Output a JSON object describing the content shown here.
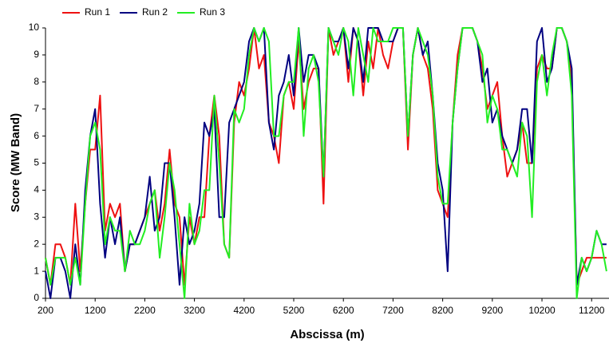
{
  "chart_data": {
    "type": "line",
    "xlabel": "Abscissa (m)",
    "ylabel": "Score (MW Band)",
    "x": [
      200,
      300,
      400,
      500,
      600,
      700,
      800,
      900,
      1000,
      1100,
      1200,
      1300,
      1400,
      1500,
      1600,
      1700,
      1800,
      1900,
      2000,
      2100,
      2200,
      2300,
      2400,
      2500,
      2600,
      2700,
      2800,
      2900,
      3000,
      3100,
      3200,
      3300,
      3400,
      3500,
      3600,
      3700,
      3800,
      3900,
      4000,
      4100,
      4200,
      4300,
      4400,
      4500,
      4600,
      4700,
      4800,
      4900,
      5000,
      5100,
      5200,
      5300,
      5400,
      5500,
      5600,
      5700,
      5800,
      5900,
      6000,
      6100,
      6200,
      6300,
      6400,
      6500,
      6600,
      6700,
      6800,
      6900,
      7000,
      7100,
      7200,
      7300,
      7400,
      7500,
      7600,
      7700,
      7800,
      7900,
      8000,
      8100,
      8200,
      8300,
      8400,
      8500,
      8600,
      8700,
      8800,
      8900,
      9000,
      9100,
      9200,
      9300,
      9400,
      9500,
      9600,
      9700,
      9800,
      9900,
      10000,
      10100,
      10200,
      10300,
      10400,
      10500,
      10600,
      10700,
      10800,
      10900,
      11000,
      11100,
      11200,
      11300,
      11400,
      11500
    ],
    "series": [
      {
        "name": "Run 1",
        "color": "#ee1111",
        "values": [
          1.5,
          0.5,
          2,
          2,
          1.5,
          0.5,
          3.5,
          1,
          3.5,
          5.5,
          5.5,
          7.5,
          2.5,
          3.5,
          3,
          3.5,
          1,
          2,
          2,
          2.5,
          3,
          3.5,
          4,
          2.5,
          3.5,
          5.5,
          3.5,
          3,
          0.5,
          3,
          2,
          3,
          3,
          6,
          7.5,
          6,
          2,
          1.5,
          6.5,
          8,
          7.5,
          8.5,
          10,
          8.5,
          9,
          6.5,
          6,
          5,
          7.5,
          8,
          7,
          9.5,
          7,
          8,
          8.5,
          8.5,
          3.5,
          10,
          9,
          9.5,
          10,
          8,
          10,
          9.5,
          7.5,
          9.5,
          8.5,
          10,
          9,
          8.5,
          9.5,
          10,
          10,
          5.5,
          9,
          10,
          9,
          8.5,
          7,
          4,
          3.5,
          3,
          6.5,
          9,
          10,
          10,
          10,
          9.5,
          8.5,
          7,
          7.5,
          8,
          6,
          4.5,
          5,
          5.5,
          6.5,
          5,
          5,
          8.5,
          9,
          8.5,
          8.5,
          10,
          10,
          9.5,
          8,
          0.5,
          1,
          1.5,
          1.5,
          1.5,
          1.5,
          1.5
        ]
      },
      {
        "name": "Run 2",
        "color": "#000080",
        "values": [
          1,
          0,
          1.5,
          1.5,
          1,
          0,
          2,
          0.5,
          4,
          6,
          7,
          3.5,
          1.5,
          3,
          2,
          3,
          1,
          2,
          2,
          2.5,
          3,
          4.5,
          2.5,
          3,
          5,
          5,
          3,
          0.5,
          3,
          2,
          2.5,
          3.5,
          6.5,
          6,
          7,
          3,
          3,
          6.5,
          7,
          7.5,
          8,
          9.5,
          10,
          9.5,
          10,
          6.5,
          5.5,
          7.5,
          8,
          9,
          7.5,
          10,
          8,
          9,
          9,
          8.5,
          4.5,
          10,
          9.5,
          9.5,
          10,
          8.5,
          10,
          9.5,
          8,
          10,
          10,
          10,
          9.5,
          9.5,
          9.5,
          10,
          10,
          6,
          9,
          10,
          9,
          9.5,
          7.5,
          5,
          4,
          1,
          6.5,
          8.5,
          10,
          10,
          10,
          9.5,
          8,
          8.5,
          6.5,
          7,
          6,
          5.5,
          5,
          5.5,
          7,
          7,
          5,
          9.5,
          10,
          8,
          8.5,
          10,
          10,
          9.5,
          8.5,
          0.5,
          1.5,
          1,
          1.5,
          2.5,
          2,
          2
        ]
      },
      {
        "name": "Run 3",
        "color": "#22ee22",
        "values": [
          1.5,
          0.5,
          1.5,
          1.5,
          1.5,
          0.5,
          1.5,
          0.5,
          3.5,
          6,
          6.5,
          5.5,
          2,
          3,
          2.5,
          2.5,
          1,
          2.5,
          2,
          2,
          2.5,
          3.5,
          4,
          1.5,
          3,
          5,
          4,
          2,
          0,
          3.5,
          2,
          2.5,
          4,
          4,
          7.5,
          5,
          2,
          1.5,
          7,
          6.5,
          7,
          9,
          10,
          9.5,
          10,
          9.5,
          6,
          6,
          7.5,
          8,
          8,
          10,
          6,
          8.5,
          9,
          8,
          4.5,
          10,
          9.5,
          9,
          10,
          9.5,
          7.5,
          10,
          9,
          8,
          10,
          9.5,
          9.5,
          9.5,
          10,
          10,
          10,
          6,
          9,
          10,
          9.5,
          9,
          7.5,
          4.5,
          3.5,
          3.5,
          6.5,
          8.5,
          10,
          10,
          10,
          9.5,
          9,
          6.5,
          7.5,
          7,
          5.5,
          5.5,
          5,
          4.5,
          6.5,
          6,
          3,
          8,
          9,
          7.5,
          9,
          10,
          10,
          9.5,
          7.5,
          0,
          1.5,
          1,
          1.5,
          2.5,
          2,
          1
        ]
      }
    ],
    "xlim": [
      200,
      11550
    ],
    "xticks": [
      200,
      1200,
      2200,
      3200,
      4200,
      5200,
      6200,
      7200,
      8200,
      9200,
      10200,
      11200
    ],
    "ylim": [
      0,
      10
    ],
    "yticks": [
      0,
      1,
      2,
      3,
      4,
      5,
      6,
      7,
      8,
      9,
      10
    ],
    "legend": "top-left"
  }
}
